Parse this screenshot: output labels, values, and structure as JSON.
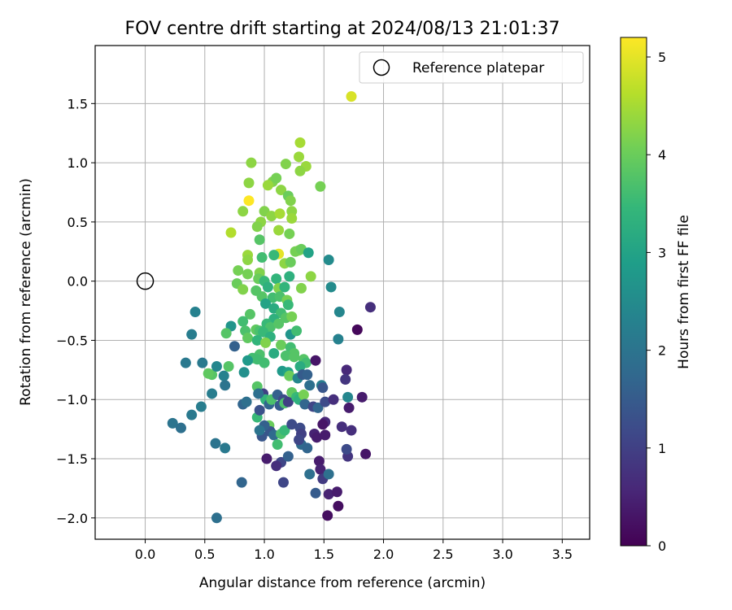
{
  "chart_data": {
    "type": "scatter",
    "title": "FOV centre drift starting at 2024/08/13 21:01:37",
    "xlabel": "Angular distance from reference (arcmin)",
    "ylabel": "Rotation from reference (arcmin)",
    "xlim": [
      -0.42,
      3.73
    ],
    "ylim": [
      -2.18,
      1.99
    ],
    "xticks": [
      0.0,
      0.5,
      1.0,
      1.5,
      2.0,
      2.5,
      3.0,
      3.5
    ],
    "xtick_labels": [
      "0.0",
      "0.5",
      "1.0",
      "1.5",
      "2.0",
      "2.5",
      "3.0",
      "3.5"
    ],
    "yticks": [
      -2.0,
      -1.5,
      -1.0,
      -0.5,
      0.0,
      0.5,
      1.0,
      1.5
    ],
    "ytick_labels": [
      "−2.0",
      "−1.5",
      "−1.0",
      "−0.5",
      "0.0",
      "0.5",
      "1.0",
      "1.5"
    ],
    "grid": true,
    "legend": {
      "placement": "top-right",
      "entries": [
        "Reference platepar"
      ]
    },
    "reference_point": {
      "label": "Reference platepar",
      "x": 0.0,
      "y": 0.0
    },
    "colorbar": {
      "label": "Hours from first FF file",
      "colormap": "viridis",
      "range": [
        0,
        5.2
      ],
      "ticks": [
        0,
        1,
        2,
        3,
        4,
        5
      ],
      "tick_labels": [
        "0",
        "1",
        "2",
        "3",
        "4",
        "5"
      ]
    },
    "color_stops": [
      "#440154",
      "#482878",
      "#3e4989",
      "#31688e",
      "#26828e",
      "#1f9e89",
      "#35b779",
      "#6ece58",
      "#b5de2b",
      "#fde725"
    ],
    "points": [
      [
        1.73,
        1.56,
        4.9
      ],
      [
        0.87,
        0.68,
        5.2
      ],
      [
        1.12,
        0.23,
        5.0
      ],
      [
        1.3,
        1.17,
        4.5
      ],
      [
        1.29,
        1.05,
        4.4
      ],
      [
        1.35,
        0.97,
        4.4
      ],
      [
        1.3,
        0.93,
        4.3
      ],
      [
        0.89,
        1.0,
        4.3
      ],
      [
        1.18,
        0.99,
        4.2
      ],
      [
        1.47,
        0.8,
        4.1
      ],
      [
        0.87,
        0.83,
        4.3
      ],
      [
        1.07,
        0.84,
        4.2
      ],
      [
        1.1,
        0.87,
        4.1
      ],
      [
        1.03,
        0.81,
        4.4
      ],
      [
        1.14,
        0.77,
        4.3
      ],
      [
        1.2,
        0.72,
        4.0
      ],
      [
        1.22,
        0.68,
        4.2
      ],
      [
        0.82,
        0.59,
        4.3
      ],
      [
        1.0,
        0.59,
        4.2
      ],
      [
        1.06,
        0.55,
        4.3
      ],
      [
        1.13,
        0.57,
        4.5
      ],
      [
        1.23,
        0.59,
        4.3
      ],
      [
        1.23,
        0.53,
        4.4
      ],
      [
        0.97,
        0.5,
        4.3
      ],
      [
        0.94,
        0.46,
        4.2
      ],
      [
        1.12,
        0.43,
        4.4
      ],
      [
        1.21,
        0.4,
        4.1
      ],
      [
        0.72,
        0.41,
        4.6
      ],
      [
        0.96,
        0.35,
        3.8
      ],
      [
        1.29,
        0.26,
        4.3
      ],
      [
        1.26,
        0.25,
        4.1
      ],
      [
        1.31,
        0.27,
        4.0
      ],
      [
        1.08,
        0.22,
        3.5
      ],
      [
        0.98,
        0.2,
        3.6
      ],
      [
        0.86,
        0.22,
        4.4
      ],
      [
        0.86,
        0.18,
        4.3
      ],
      [
        1.17,
        0.15,
        4.3
      ],
      [
        1.22,
        0.16,
        4.0
      ],
      [
        1.37,
        0.24,
        3.0
      ],
      [
        1.54,
        0.18,
        2.5
      ],
      [
        0.78,
        0.09,
        4.1
      ],
      [
        0.86,
        0.06,
        4.1
      ],
      [
        0.96,
        0.07,
        4.2
      ],
      [
        0.95,
        0.02,
        4.0
      ],
      [
        1.1,
        0.02,
        3.4
      ],
      [
        1.21,
        0.04,
        3.3
      ],
      [
        1.39,
        0.04,
        4.3
      ],
      [
        0.77,
        -0.02,
        4.0
      ],
      [
        0.82,
        -0.07,
        4.2
      ],
      [
        0.93,
        -0.08,
        3.8
      ],
      [
        1.0,
        0.0,
        3.5
      ],
      [
        1.03,
        -0.05,
        3.3
      ],
      [
        1.12,
        -0.06,
        4.2
      ],
      [
        1.17,
        -0.05,
        3.4
      ],
      [
        1.31,
        -0.06,
        4.2
      ],
      [
        1.56,
        -0.05,
        2.5
      ],
      [
        0.98,
        -0.13,
        3.8
      ],
      [
        1.07,
        -0.14,
        3.6
      ],
      [
        1.13,
        -0.13,
        3.7
      ],
      [
        1.01,
        -0.19,
        3.0
      ],
      [
        1.08,
        -0.23,
        3.2
      ],
      [
        1.19,
        -0.16,
        4.1
      ],
      [
        1.2,
        -0.2,
        3.5
      ],
      [
        1.14,
        -0.27,
        3.6
      ],
      [
        1.08,
        -0.32,
        3.3
      ],
      [
        1.02,
        -0.36,
        3.5
      ],
      [
        1.05,
        -0.39,
        3.7
      ],
      [
        0.88,
        -0.28,
        3.8
      ],
      [
        0.82,
        -0.34,
        3.6
      ],
      [
        0.72,
        -0.38,
        2.7
      ],
      [
        0.84,
        -0.42,
        3.7
      ],
      [
        0.93,
        -0.41,
        3.9
      ],
      [
        0.96,
        -0.42,
        3.7
      ],
      [
        0.99,
        -0.43,
        3.5
      ],
      [
        1.05,
        -0.47,
        3.3
      ],
      [
        1.12,
        -0.36,
        3.8
      ],
      [
        1.18,
        -0.31,
        3.8
      ],
      [
        1.23,
        -0.3,
        4.1
      ],
      [
        1.22,
        -0.45,
        2.7
      ],
      [
        1.27,
        -0.42,
        3.6
      ],
      [
        0.68,
        -0.44,
        3.8
      ],
      [
        0.86,
        -0.48,
        3.9
      ],
      [
        0.94,
        -0.5,
        3.4
      ],
      [
        1.01,
        -0.52,
        4.2
      ],
      [
        1.14,
        -0.54,
        4.0
      ],
      [
        1.22,
        -0.56,
        3.6
      ],
      [
        1.25,
        -0.61,
        3.8
      ],
      [
        0.96,
        -0.62,
        3.7
      ],
      [
        1.08,
        -0.61,
        3.2
      ],
      [
        1.18,
        -0.63,
        3.7
      ],
      [
        0.9,
        -0.65,
        3.6
      ],
      [
        0.94,
        -0.66,
        3.6
      ],
      [
        1.0,
        -0.69,
        3.6
      ],
      [
        1.25,
        -0.64,
        3.8
      ],
      [
        1.33,
        -0.66,
        3.8
      ],
      [
        1.35,
        -0.69,
        3.6
      ],
      [
        1.3,
        -0.72,
        3.2
      ],
      [
        1.43,
        -0.67,
        0.3
      ],
      [
        0.86,
        -0.67,
        2.8
      ],
      [
        0.83,
        -0.77,
        2.6
      ],
      [
        1.15,
        -0.76,
        2.8
      ],
      [
        1.2,
        -0.77,
        3.0
      ],
      [
        1.21,
        -0.8,
        4.0
      ],
      [
        1.28,
        -0.82,
        2.4
      ],
      [
        1.32,
        -0.79,
        1.5
      ],
      [
        1.36,
        -0.79,
        1.6
      ],
      [
        1.38,
        -0.88,
        1.9
      ],
      [
        1.48,
        -0.88,
        2.2
      ],
      [
        1.49,
        -0.9,
        1.4
      ],
      [
        1.69,
        -0.75,
        0.6
      ],
      [
        1.68,
        -0.83,
        0.8
      ],
      [
        1.7,
        -0.98,
        2.4
      ],
      [
        1.71,
        -1.07,
        0.4
      ],
      [
        1.73,
        -1.26,
        0.7
      ],
      [
        1.65,
        -1.23,
        0.7
      ],
      [
        1.82,
        -0.98,
        0.4
      ],
      [
        1.78,
        -0.41,
        0.1
      ],
      [
        1.89,
        -0.22,
        0.7
      ],
      [
        1.62,
        -0.49,
        2.3
      ],
      [
        1.63,
        -0.26,
        2.4
      ],
      [
        0.56,
        -0.79,
        3.8
      ],
      [
        0.53,
        -0.78,
        3.9
      ],
      [
        0.6,
        -0.72,
        2.4
      ],
      [
        0.66,
        -0.8,
        2.3
      ],
      [
        0.7,
        -0.72,
        3.8
      ],
      [
        0.48,
        -0.69,
        2.1
      ],
      [
        0.34,
        -0.69,
        2.1
      ],
      [
        0.67,
        -0.88,
        2.0
      ],
      [
        0.56,
        -0.95,
        2.2
      ],
      [
        0.47,
        -1.06,
        2.2
      ],
      [
        0.39,
        -1.13,
        2.1
      ],
      [
        0.23,
        -1.2,
        2.0
      ],
      [
        0.3,
        -1.24,
        1.9
      ],
      [
        0.59,
        -1.37,
        2.0
      ],
      [
        0.67,
        -1.41,
        2.1
      ],
      [
        0.82,
        -1.04,
        1.7
      ],
      [
        0.85,
        -1.02,
        1.9
      ],
      [
        0.94,
        -1.15,
        3.5
      ],
      [
        0.96,
        -1.09,
        1.3
      ],
      [
        0.99,
        -0.95,
        1.0
      ],
      [
        1.01,
        -1.0,
        3.4
      ],
      [
        1.04,
        -1.04,
        1.7
      ],
      [
        1.06,
        -1.0,
        3.7
      ],
      [
        1.11,
        -0.96,
        1.6
      ],
      [
        1.13,
        -1.05,
        1.5
      ],
      [
        1.16,
        -1.0,
        1.2
      ],
      [
        1.17,
        -1.03,
        3.7
      ],
      [
        1.2,
        -1.02,
        1.0
      ],
      [
        1.23,
        -0.94,
        3.9
      ],
      [
        1.27,
        -0.98,
        3.5
      ],
      [
        1.29,
        -1.0,
        3.3
      ],
      [
        1.33,
        -0.96,
        4.1
      ],
      [
        1.34,
        -1.04,
        1.7
      ],
      [
        1.41,
        -1.06,
        1.1
      ],
      [
        1.45,
        -1.07,
        1.7
      ],
      [
        1.51,
        -1.02,
        1.2
      ],
      [
        1.58,
        -1.0,
        0.7
      ],
      [
        1.04,
        -1.22,
        4.0
      ],
      [
        1.05,
        -1.27,
        1.4
      ],
      [
        1.08,
        -1.3,
        1.8
      ],
      [
        1.11,
        -1.38,
        3.6
      ],
      [
        1.14,
        -1.29,
        3.7
      ],
      [
        1.17,
        -1.26,
        3.5
      ],
      [
        1.23,
        -1.21,
        1.2
      ],
      [
        1.3,
        -1.24,
        1.2
      ],
      [
        1.31,
        -1.29,
        1.0
      ],
      [
        1.31,
        -1.38,
        1.8
      ],
      [
        1.36,
        -1.41,
        1.7
      ],
      [
        1.29,
        -1.34,
        1.1
      ],
      [
        1.42,
        -1.29,
        0.5
      ],
      [
        1.44,
        -1.32,
        0.4
      ],
      [
        1.51,
        -1.3,
        0.4
      ],
      [
        1.51,
        -1.19,
        0.6
      ],
      [
        1.49,
        -1.21,
        0.3
      ],
      [
        0.94,
        -0.89,
        3.8
      ],
      [
        0.95,
        -0.95,
        1.9
      ],
      [
        1.0,
        -1.22,
        1.6
      ],
      [
        0.98,
        -1.31,
        1.4
      ],
      [
        0.96,
        -1.26,
        2.0
      ],
      [
        1.38,
        -1.63,
        1.9
      ],
      [
        1.43,
        -1.79,
        1.5
      ],
      [
        1.46,
        -1.52,
        0.4
      ],
      [
        1.47,
        -1.59,
        0.5
      ],
      [
        1.49,
        -1.67,
        0.9
      ],
      [
        1.54,
        -1.63,
        1.9
      ],
      [
        1.54,
        -1.8,
        0.5
      ],
      [
        1.61,
        -1.78,
        0.4
      ],
      [
        1.62,
        -1.9,
        0.2
      ],
      [
        1.53,
        -1.98,
        0.2
      ],
      [
        1.7,
        -1.48,
        0.8
      ],
      [
        1.69,
        -1.42,
        1.2
      ],
      [
        1.85,
        -1.46,
        0.3
      ],
      [
        1.14,
        -1.53,
        1.1
      ],
      [
        1.1,
        -1.56,
        0.7
      ],
      [
        1.2,
        -1.48,
        1.6
      ],
      [
        1.16,
        -1.7,
        1.1
      ],
      [
        1.02,
        -1.5,
        0.4
      ],
      [
        0.81,
        -1.7,
        1.7
      ],
      [
        0.6,
        -2.0,
        1.9
      ],
      [
        0.42,
        -0.26,
        2.3
      ],
      [
        0.39,
        -0.45,
        2.2
      ],
      [
        0.75,
        -0.55,
        1.6
      ]
    ]
  }
}
